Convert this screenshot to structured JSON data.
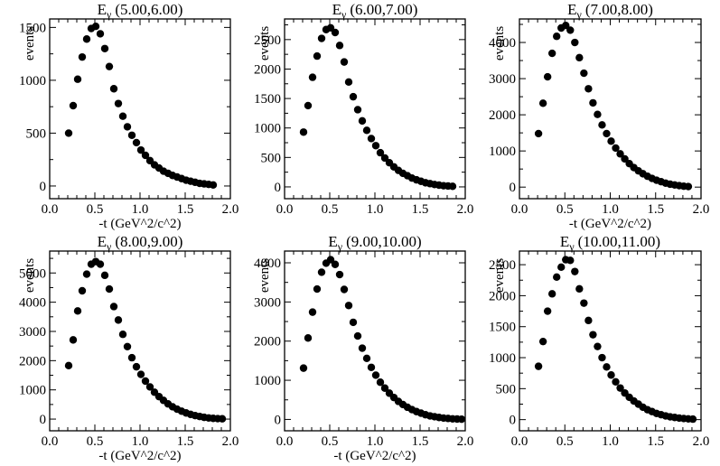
{
  "chart_data": [
    {
      "type": "scatter",
      "title": {
        "symbol": "E",
        "sub": "γ",
        "range": "(5.00,6.00)"
      },
      "xlabel": "-t  (GeV^2/c^2)",
      "ylabel": "events",
      "xlim": [
        0,
        2
      ],
      "ylim": [
        -120,
        1580
      ],
      "xticks": [
        "0.0",
        "0.5",
        "1.0",
        "1.5",
        "2.0"
      ],
      "yticks": [
        0,
        500,
        1000,
        1500
      ],
      "ytick_labels": [
        "0",
        "500",
        "1000",
        "1500"
      ],
      "x": [
        0.21,
        0.26,
        0.31,
        0.36,
        0.41,
        0.46,
        0.51,
        0.56,
        0.61,
        0.66,
        0.71,
        0.76,
        0.81,
        0.86,
        0.91,
        0.96,
        1.01,
        1.06,
        1.11,
        1.16,
        1.21,
        1.26,
        1.31,
        1.36,
        1.41,
        1.46,
        1.51,
        1.56,
        1.61,
        1.66,
        1.71,
        1.76,
        1.81
      ],
      "y": [
        500,
        760,
        1010,
        1220,
        1390,
        1490,
        1510,
        1440,
        1300,
        1130,
        920,
        780,
        660,
        560,
        480,
        410,
        340,
        290,
        240,
        200,
        170,
        140,
        120,
        100,
        85,
        70,
        55,
        45,
        35,
        25,
        20,
        15,
        10
      ]
    },
    {
      "type": "scatter",
      "title": {
        "symbol": "E",
        "sub": "γ",
        "range": "(6.00,7.00)"
      },
      "xlabel": "",
      "ylabel": "events",
      "xlim": [
        0,
        2
      ],
      "ylim": [
        -200,
        2850
      ],
      "xticks": [
        "0.0",
        "0.5",
        "1.0",
        "1.5",
        "2.0"
      ],
      "yticks": [
        0,
        500,
        1000,
        1500,
        2000,
        2500
      ],
      "ytick_labels": [
        "0",
        "500",
        "1000",
        "1500",
        "2000",
        "2500"
      ],
      "x": [
        0.21,
        0.26,
        0.31,
        0.36,
        0.41,
        0.46,
        0.51,
        0.56,
        0.61,
        0.66,
        0.71,
        0.76,
        0.81,
        0.86,
        0.91,
        0.96,
        1.01,
        1.06,
        1.11,
        1.16,
        1.21,
        1.26,
        1.31,
        1.36,
        1.41,
        1.46,
        1.51,
        1.56,
        1.61,
        1.66,
        1.71,
        1.76,
        1.81,
        1.86
      ],
      "y": [
        930,
        1380,
        1860,
        2220,
        2520,
        2670,
        2700,
        2620,
        2400,
        2120,
        1780,
        1530,
        1310,
        1120,
        960,
        820,
        700,
        580,
        490,
        410,
        340,
        280,
        230,
        190,
        150,
        120,
        95,
        70,
        55,
        40,
        30,
        20,
        15,
        10
      ]
    },
    {
      "type": "scatter",
      "title": {
        "symbol": "E",
        "sub": "γ",
        "range": "(7.00,8.00)"
      },
      "xlabel": "-t  (GeV^2/c^2)",
      "ylabel": "events",
      "xlim": [
        0,
        2
      ],
      "ylim": [
        -320,
        4650
      ],
      "xticks": [
        "0.0",
        "0.5",
        "1.0",
        "1.5",
        "2.0"
      ],
      "yticks": [
        0,
        1000,
        2000,
        3000,
        4000
      ],
      "ytick_labels": [
        "0",
        "1000",
        "2000",
        "3000",
        "4000"
      ],
      "x": [
        0.21,
        0.26,
        0.31,
        0.36,
        0.41,
        0.46,
        0.51,
        0.56,
        0.61,
        0.66,
        0.71,
        0.76,
        0.81,
        0.86,
        0.91,
        0.96,
        1.01,
        1.06,
        1.11,
        1.16,
        1.21,
        1.26,
        1.31,
        1.36,
        1.41,
        1.46,
        1.51,
        1.56,
        1.61,
        1.66,
        1.71,
        1.76,
        1.81,
        1.86
      ],
      "y": [
        1480,
        2320,
        3050,
        3700,
        4170,
        4400,
        4470,
        4340,
        4000,
        3580,
        3150,
        2720,
        2330,
        2010,
        1720,
        1480,
        1270,
        1080,
        920,
        780,
        650,
        540,
        450,
        370,
        300,
        240,
        190,
        150,
        110,
        80,
        60,
        40,
        25,
        15
      ]
    },
    {
      "type": "scatter",
      "title": {
        "symbol": "E",
        "sub": "γ",
        "range": "(8.00,9.00)"
      },
      "xlabel": "-t  (GeV^2/c^2)",
      "ylabel": "events",
      "xlim": [
        0,
        2
      ],
      "ylim": [
        -400,
        5750
      ],
      "xticks": [
        "0.0",
        "0.5",
        "1.0",
        "1.5",
        "2.0"
      ],
      "yticks": [
        0,
        1000,
        2000,
        3000,
        4000,
        5000
      ],
      "ytick_labels": [
        "0",
        "1000",
        "2000",
        "3000",
        "4000",
        "5000"
      ],
      "x": [
        0.21,
        0.26,
        0.31,
        0.36,
        0.41,
        0.46,
        0.51,
        0.56,
        0.61,
        0.66,
        0.71,
        0.76,
        0.81,
        0.86,
        0.91,
        0.96,
        1.01,
        1.06,
        1.11,
        1.16,
        1.21,
        1.26,
        1.31,
        1.36,
        1.41,
        1.46,
        1.51,
        1.56,
        1.61,
        1.66,
        1.71,
        1.76,
        1.81,
        1.86,
        1.91
      ],
      "y": [
        1830,
        2710,
        3700,
        4390,
        4960,
        5300,
        5390,
        5300,
        4920,
        4450,
        3850,
        3390,
        2900,
        2480,
        2100,
        1790,
        1530,
        1300,
        1100,
        920,
        770,
        640,
        520,
        420,
        340,
        270,
        210,
        160,
        120,
        90,
        60,
        40,
        25,
        15,
        10
      ]
    },
    {
      "type": "scatter",
      "title": {
        "symbol": "E",
        "sub": "γ",
        "range": "(9.00,10.00)"
      },
      "xlabel": "-t  (GeV^2/c^2)",
      "ylabel": "events",
      "xlim": [
        0,
        2
      ],
      "ylim": [
        -290,
        4300
      ],
      "xticks": [
        "0.0",
        "0.5",
        "1.0",
        "1.5",
        "2.0"
      ],
      "yticks": [
        0,
        1000,
        2000,
        3000,
        4000
      ],
      "ytick_labels": [
        "0",
        "1000",
        "2000",
        "3000",
        "4000"
      ],
      "x": [
        0.21,
        0.26,
        0.31,
        0.36,
        0.41,
        0.46,
        0.51,
        0.56,
        0.61,
        0.66,
        0.71,
        0.76,
        0.81,
        0.86,
        0.91,
        0.96,
        1.01,
        1.06,
        1.11,
        1.16,
        1.21,
        1.26,
        1.31,
        1.36,
        1.41,
        1.46,
        1.51,
        1.56,
        1.61,
        1.66,
        1.71,
        1.76,
        1.81,
        1.86,
        1.91,
        1.96
      ],
      "y": [
        1310,
        2080,
        2740,
        3330,
        3760,
        3990,
        4080,
        3960,
        3700,
        3320,
        2910,
        2480,
        2130,
        1820,
        1560,
        1330,
        1130,
        950,
        800,
        670,
        560,
        460,
        380,
        310,
        250,
        200,
        160,
        120,
        90,
        70,
        50,
        35,
        25,
        15,
        10,
        5
      ]
    },
    {
      "type": "scatter",
      "title": {
        "symbol": "E",
        "sub": "γ",
        "range": "(10.00,11.00)"
      },
      "xlabel": "",
      "ylabel": "events",
      "xlim": [
        0,
        2
      ],
      "ylim": [
        -180,
        2720
      ],
      "xticks": [
        "0.0",
        "0.5",
        "1.0",
        "1.5",
        "2.0"
      ],
      "yticks": [
        0,
        500,
        1000,
        1500,
        2000,
        2500
      ],
      "ytick_labels": [
        "0",
        "500",
        "1000",
        "1500",
        "2000",
        "2500"
      ],
      "x": [
        0.21,
        0.26,
        0.31,
        0.36,
        0.41,
        0.46,
        0.51,
        0.56,
        0.61,
        0.66,
        0.71,
        0.76,
        0.81,
        0.86,
        0.91,
        0.96,
        1.01,
        1.06,
        1.11,
        1.16,
        1.21,
        1.26,
        1.31,
        1.36,
        1.41,
        1.46,
        1.51,
        1.56,
        1.61,
        1.66,
        1.71,
        1.76,
        1.81,
        1.86,
        1.91
      ],
      "y": [
        860,
        1260,
        1750,
        2030,
        2300,
        2460,
        2580,
        2570,
        2390,
        2110,
        1880,
        1600,
        1370,
        1180,
        1000,
        850,
        720,
        610,
        510,
        430,
        360,
        300,
        250,
        200,
        160,
        130,
        100,
        80,
        60,
        45,
        35,
        25,
        18,
        12,
        8
      ]
    }
  ]
}
